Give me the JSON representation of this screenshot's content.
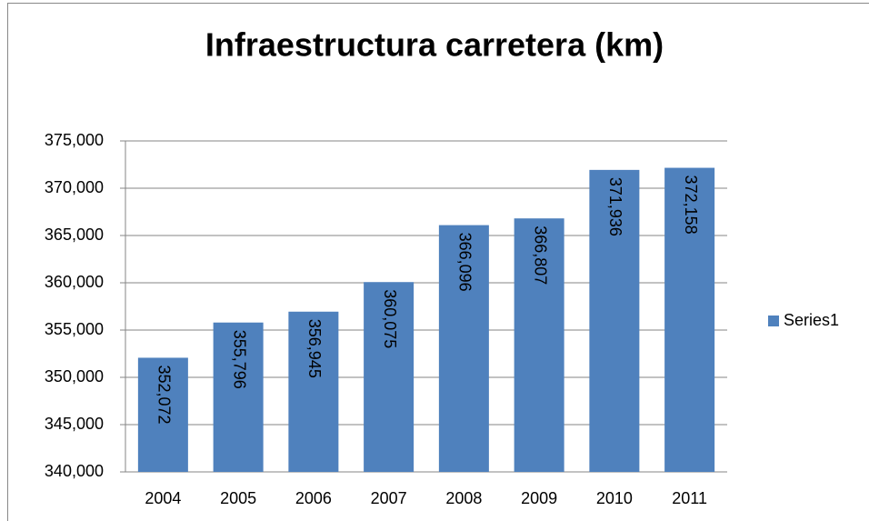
{
  "chart_data": {
    "type": "bar",
    "title": "Infraestructura carretera (km)",
    "categories": [
      "2004",
      "2005",
      "2006",
      "2007",
      "2008",
      "2009",
      "2010",
      "2011"
    ],
    "series": [
      {
        "name": "Series1",
        "color": "#4f81bd",
        "values": [
          352072,
          355796,
          356945,
          360075,
          366096,
          366807,
          371936,
          372158
        ],
        "value_labels": [
          "352,072",
          "355,796",
          "356,945",
          "360,075",
          "366,096",
          "366,807",
          "371,936",
          "372,158"
        ]
      }
    ],
    "ylim": [
      340000,
      375000
    ],
    "yticks": [
      {
        "value": 340000,
        "label": "340,000"
      },
      {
        "value": 345000,
        "label": "345,000"
      },
      {
        "value": 350000,
        "label": "350,000"
      },
      {
        "value": 355000,
        "label": "355,000"
      },
      {
        "value": 360000,
        "label": "360,000"
      },
      {
        "value": 365000,
        "label": "365,000"
      },
      {
        "value": 370000,
        "label": "370,000"
      },
      {
        "value": 375000,
        "label": "375,000"
      }
    ],
    "grid": true,
    "legend": "right"
  }
}
